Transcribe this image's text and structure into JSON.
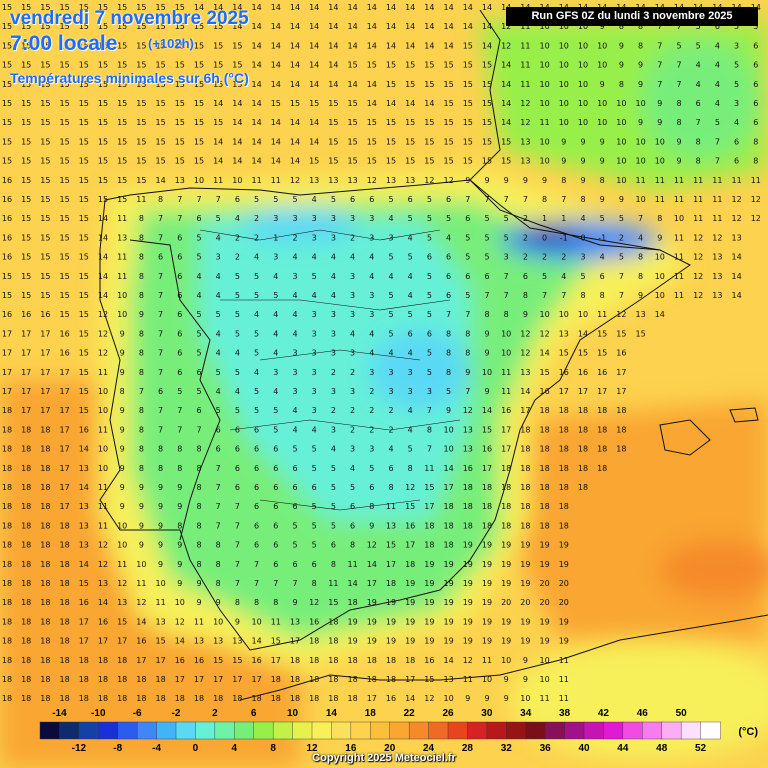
{
  "header": {
    "date": "vendredi 7 novembre 2025",
    "time": "7:00 locale",
    "step": "(+102h)",
    "variable": "Températures minimales sur 6h (°C)"
  },
  "run_info": "Run GFS 0Z du lundi 3 novembre 2025",
  "copyright": "Copyright 2025 Meteociel.fr",
  "legend": {
    "unit": "(°C)",
    "colors": [
      "#0a0a3c",
      "#102a6e",
      "#1540a8",
      "#1a2fd6",
      "#2b5cf0",
      "#3d88f5",
      "#40b4f7",
      "#5ad9f5",
      "#66f0d8",
      "#6ef2a6",
      "#78ee7a",
      "#98ef4a",
      "#c4f04a",
      "#e6f24c",
      "#f7f05a",
      "#fbe05c",
      "#fcd24e",
      "#fcbf3c",
      "#f9a632",
      "#f68a2a",
      "#f06a24",
      "#e8441e",
      "#d62222",
      "#b81818",
      "#961414",
      "#7a0f1a",
      "#8a0f5a",
      "#a2108a",
      "#c415b4",
      "#e01ad2",
      "#f04ce4",
      "#f77cef",
      "#fbaef6",
      "#fde0fb",
      "#ffffff"
    ],
    "top_labels": [
      "-14",
      "-10",
      "-6",
      "-2",
      "2",
      "6",
      "10",
      "14",
      "18",
      "22",
      "26",
      "30",
      "34",
      "38",
      "42",
      "46",
      "50"
    ],
    "bottom_labels": [
      "-12",
      "-8",
      "-4",
      "0",
      "4",
      "8",
      "12",
      "16",
      "20",
      "24",
      "28",
      "32",
      "36",
      "40",
      "44",
      "48",
      "52"
    ]
  },
  "grid": {
    "rows": [
      "15 15 15 15 15 15 15 15 15 15 14 14 14 14 14 14 14 14 14 14 14 14 14 14 14 14 14 14 14 14 14 14 14 14 14 14 14 14 14 14 14 14 14",
      "15 15 15 15 15 15 15 15 15 15 15 15 14 14 14 14 14 14 14 14 14 14 14 14 14 14 12 11 10 10 10 9 8 8 7 7 5 6 5 5 7",
      "15 15 15 15 15 15 15 15 15 15 15 15 15 14 14 14 14 14 14 14 14 14 14 14 15 14 12 11 10 10 10 10 9 8 7 5 5 4 3 6",
      "15 15 15 15 15 15 15 15 15 15 15 15 15 14 14 14 14 14 15 15 15 15 15 15 15 15 14 11 10 10 10 10 9 9 7 7 4 4 5 6",
      "15 15 15 15 15 15 15 15 15 15 15 15 15 14 14 14 14 14 14 14 15 15 15 15 15 15 14 11 10 10 10 9 8 9 7 7 4 4 5 6",
      "15 15 15 15 15 15 15 15 15 15 15 14 14 14 15 15 15 15 15 14 14 14 14 15 15 15 14 12 10 10 10 10 10 10 9 8 6 4 3 6",
      "15 15 15 15 15 15 15 15 15 15 15 15 14 14 14 14 14 15 15 15 15 15 15 15 15 15 14 12 11 10 10 10 10 9 9 8 7 5 4 6",
      "15 15 15 15 15 15 15 15 15 15 15 14 14 14 14 14 14 15 15 15 15 15 15 15 15 15 15 13 10 9 9 9 10 10 10 9 8 7 6 8",
      "15 15 15 15 15 15 15 15 15 15 15 14 14 14 14 14 15 15 15 15 15 15 15 15 15 15 15 13 10 9 9 9 10 10 10 9 8 7 6 8",
      "16 15 15 15 15 15 15 15 14 13 10 11 10 11 11 12 13 13 13 12 13 13 12 12 9 9 9 9 9 8 9 8 10 11 11 11 11 11 11 11",
      "16 15 15 15 15 15 15 11 8 7 7 7 6 5 5 5 4 5 6 6 5 6 5 6 7 7 7 7 8 7 8 9 9 10 11 11 11 11 12 12",
      "16 15 15 15 15 14 11 8 7 7 6 5 4 2 3 3 3 3 3 3 4 5 5 5 6 5 5 2 1 1 4 5 5 7 8 10 11 11 12 12",
      "16 15 15 15 15 14 13 8 7 6 5 4 2 2 1 2 3 3 2 3 3 4 5 4 5 5 5 2 0 -1 0 -1 2 4 9 11 12 12 13",
      "16 15 15 15 15 14 11 8 6 6 5 3 2 4 3 4 4 4 4 4 5 5 6 6 5 5 3 2 2 2 3 4 5 8 10 11 12 13 14",
      "15 15 15 15 15 14 11 8 7 6 4 4 5 5 4 3 5 4 3 4 4 4 5 6 6 6 7 6 5 4 5 6 7 8 10 11 12 13 14",
      "15 15 15 15 15 14 10 8 7 6 4 4 5 5 5 4 4 4 3 3 5 4 5 6 5 7 7 8 7 7 8 8 7 9 10 11 12 13 14",
      "16 16 16 15 15 12 10 9 7 6 5 5 5 4 4 4 3 3 3 3 5 5 5 7 7 8 8 9 10 10 10 11 12 13 14",
      "17 17 17 16 15 12 9 8 7 6 5 4 5 5 4 4 3 3 4 4 5 6 6 8 8 9 10 12 12 13 14 15 15 15",
      "17 17 17 16 15 12 9 8 7 6 5 4 4 5 4 3 3 3 3 4 4 4 5 8 8 9 10 12 14 15 15 15 16",
      "17 17 17 17 15 11 9 8 7 6 6 5 5 4 3 3 3 2 2 3 3 3 5 8 9 10 11 13 15 16 16 16 17",
      "17 17 17 17 15 10 8 7 6 5 5 4 4 5 4 3 3 3 3 2 3 3 3 5 7 9 11 14 16 17 17 17 17",
      "18 17 17 17 15 10 9 8 7 7 6 5 5 5 5 4 3 2 2 2 2 4 7 9 12 14 16 17 18 18 18 18 18",
      "18 18 18 17 16 11 9 8 7 7 7 6 6 6 5 4 4 3 2 2 2 4 8 10 13 15 17 18 18 18 18 18 18",
      "18 18 18 17 14 10 9 8 8 8 8 6 6 6 6 5 5 4 3 3 4 5 7 10 13 16 17 18 18 18 18 18 18",
      "18 18 18 17 13 10 9 8 8 8 8 7 6 6 6 6 5 5 4 5 6 8 11 14 16 17 18 18 18 18 18 18",
      "18 18 18 17 14 11 9 9 9 9 8 7 6 6 6 6 6 5 5 6 8 12 15 17 18 18 18 18 18 18 18",
      "18 18 18 17 13 11 9 9 9 9 8 7 7 6 6 6 5 5 6 8 11 15 17 18 18 18 18 18 18 18",
      "18 18 18 18 13 11 10 9 9 8 8 7 7 6 6 5 5 5 6 9 13 16 18 18 18 18 18 18 18 18",
      "18 18 18 18 13 12 10 9 9 9 8 8 7 6 6 5 5 6 8 12 15 17 18 18 19 19 19 19 19 19",
      "18 18 18 18 14 12 11 10 9 9 8 8 7 7 6 6 6 8 11 14 17 18 19 19 19 19 19 19 19 19",
      "18 18 18 18 15 13 12 11 10 9 9 8 7 7 7 7 8 11 14 17 18 19 19 19 19 19 19 19 20 20",
      "18 18 18 18 16 14 13 12 11 10 9 9 8 8 8 9 12 15 18 19 19 19 19 19 19 19 20 20 20 20",
      "18 18 18 18 17 16 15 14 13 12 11 10 9 10 11 13 16 18 19 19 19 19 19 19 19 19 19 19 19 19",
      "18 18 18 18 17 17 17 16 15 14 13 13 13 14 15 17 18 18 19 19 19 19 19 19 19 19 19 19 19 19",
      "18 18 18 18 18 18 18 17 17 16 16 15 15 16 17 18 18 18 18 18 18 18 16 14 12 11 10 9 10 11",
      "18 18 18 18 18 18 18 18 18 17 17 17 17 17 18 18 18 18 18 18 18 17 15 13 11 10 9 9 10 11",
      "18 18 18 18 18 18 18 18 18 18 18 18 18 18 18 18 18 18 18 17 16 14 12 10 9 9 9 10 11 11",
      "18 18 18 18 18 18 18 18 18 18 18 18 18 18 18 18 18 18 17 16 14 12 10 9 9 9 10 11 11 11",
      "18 18 18 18 18 18 18 18 18 18 18 18 18 18 18 18 18 18 16 14 12 11 10 10 10 10 11 11 11 11",
      "18 18 18 18 18 18 18 18 18 18 18 18 18 18 18 18 18 18 16 14 13 12 12 12 12 12 12 12 12 12"
    ]
  }
}
